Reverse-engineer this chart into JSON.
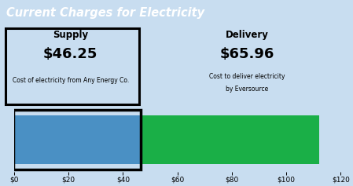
{
  "title": "Current Charges for Electricity",
  "title_bg_color": "#3B8DC8",
  "title_text_color": "#FFFFFF",
  "bg_color": "#C8DDF0",
  "supply_label": "Supply",
  "supply_amount": "$46.25",
  "supply_desc": "Cost of electricity from Any Energy Co.",
  "delivery_label": "Delivery",
  "delivery_amount": "$65.96",
  "delivery_desc_line1": "Cost to deliver electricity",
  "delivery_desc_line2": "by Eversource",
  "supply_value": 46.25,
  "delivery_value": 65.96,
  "supply_color": "#4A90C4",
  "delivery_color": "#1AAF47",
  "xlim": [
    0,
    120
  ],
  "xticks": [
    0,
    20,
    40,
    60,
    80,
    100,
    120
  ],
  "xtick_labels": [
    "$0",
    "$20",
    "$40",
    "$60",
    "$80",
    "$100",
    "$120"
  ],
  "box_border_color": "#000000"
}
